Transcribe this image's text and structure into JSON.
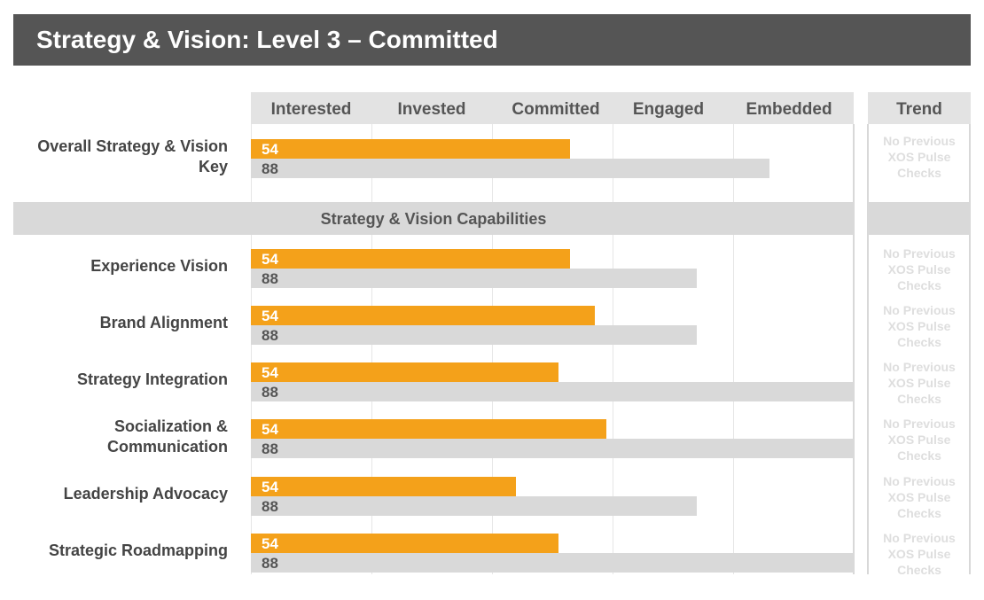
{
  "header": {
    "title": "Strategy & Vision: Level 3 – Committed"
  },
  "chart_data": {
    "type": "bar",
    "orientation": "horizontal",
    "scale": {
      "min": 0,
      "max": 100
    },
    "levels": [
      "Interested",
      "Invested",
      "Committed",
      "Engaged",
      "Embedded"
    ],
    "trend_header": "Trend",
    "section_title": "Strategy & Vision Capabilities",
    "colors": {
      "primary": "#f4a11a",
      "secondary": "#d9d9d9",
      "header_bg": "#555555"
    },
    "rows": [
      {
        "label": "Overall Strategy & Vision Key",
        "primary": 54,
        "secondary": 88,
        "primary_len": 53,
        "secondary_len": 86,
        "trend": "No Previous XOS Pulse Checks"
      },
      {
        "label": "Experience Vision",
        "primary": 54,
        "secondary": 88,
        "primary_len": 53,
        "secondary_len": 74,
        "trend": "No Previous XOS Pulse Checks"
      },
      {
        "label": "Brand Alignment",
        "primary": 54,
        "secondary": 88,
        "primary_len": 57,
        "secondary_len": 74,
        "trend": "No Previous XOS Pulse Checks"
      },
      {
        "label": "Strategy Integration",
        "primary": 54,
        "secondary": 88,
        "primary_len": 51,
        "secondary_len": 100,
        "trend": "No Previous XOS Pulse Checks"
      },
      {
        "label": "Socialization & Communication",
        "primary": 54,
        "secondary": 88,
        "primary_len": 59,
        "secondary_len": 100,
        "trend": "No Previous XOS Pulse Checks"
      },
      {
        "label": "Leadership Advocacy",
        "primary": 54,
        "secondary": 88,
        "primary_len": 44,
        "secondary_len": 74,
        "trend": "No Previous XOS Pulse Checks"
      },
      {
        "label": "Strategic Roadmapping",
        "primary": 54,
        "secondary": 88,
        "primary_len": 51,
        "secondary_len": 100,
        "trend": "No Previous XOS Pulse Checks"
      }
    ]
  }
}
